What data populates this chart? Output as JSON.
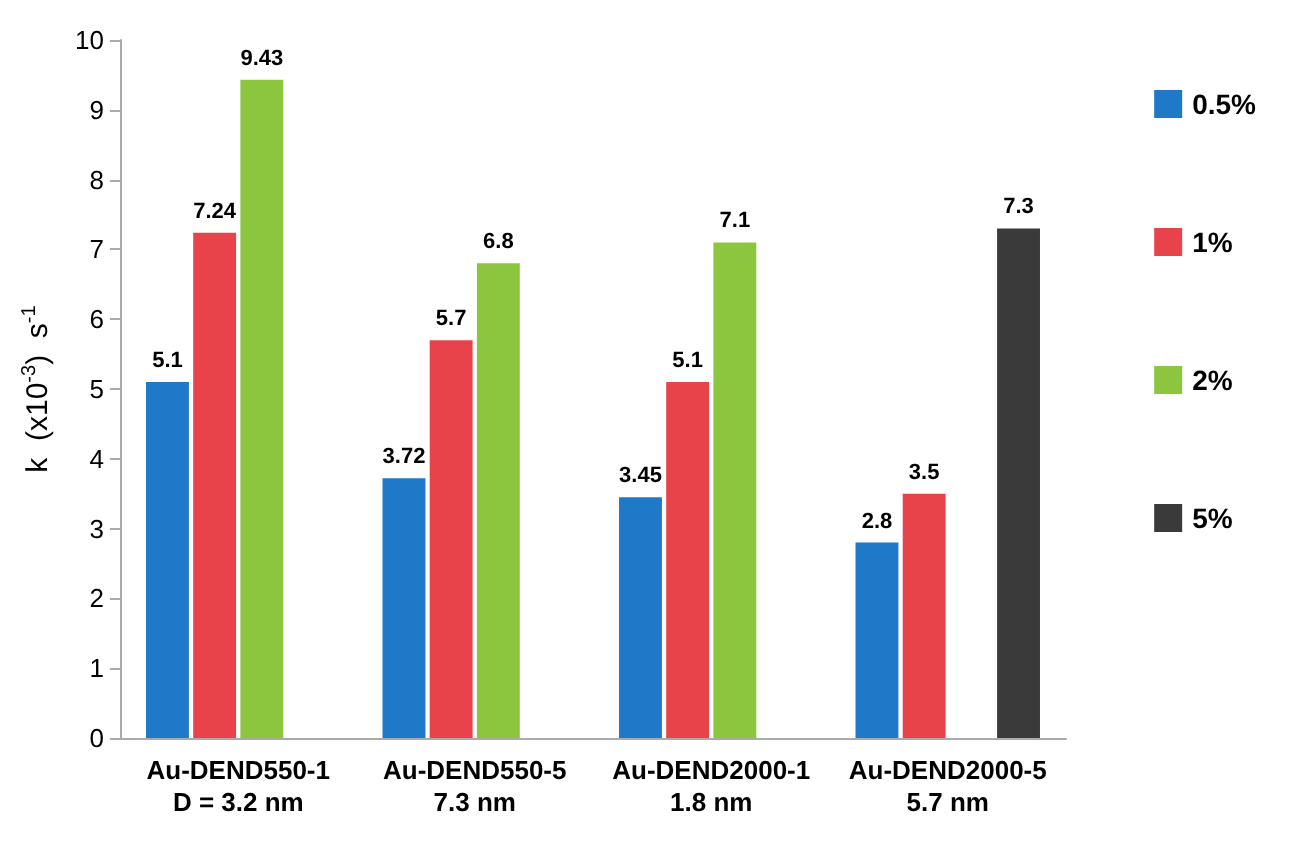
{
  "chart_data": {
    "type": "bar",
    "ylabel": "k  (x10$^{-3}$)  s$^{-1}$",
    "categories": [
      "Au-DEND550-1\nD = 3.2 nm",
      "Au-DEND550-5\n7.3 nm",
      "Au-DEND2000-1\n1.8 nm",
      "Au-DEND2000-5\n5.7 nm"
    ],
    "series": [
      {
        "name": "0.5%",
        "color": "#1f78c8",
        "values": [
          5.1,
          3.72,
          3.45,
          2.8
        ]
      },
      {
        "name": "1%",
        "color": "#e8434a",
        "values": [
          7.24,
          5.7,
          5.1,
          3.5
        ]
      },
      {
        "name": "2%",
        "color": "#8cc63f",
        "values": [
          9.43,
          6.8,
          7.1,
          null
        ]
      },
      {
        "name": "5%",
        "color": "#3a3a3a",
        "values": [
          null,
          null,
          null,
          7.3
        ]
      }
    ],
    "ylim": [
      0,
      10
    ],
    "yticks": [
      0,
      1,
      2,
      3,
      4,
      5,
      6,
      7,
      8,
      9,
      10
    ],
    "data_labels": true,
    "grid": false,
    "legend": "right"
  }
}
